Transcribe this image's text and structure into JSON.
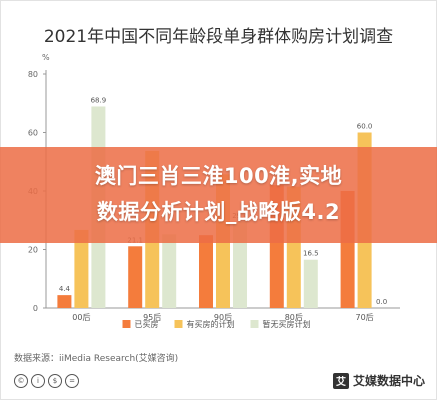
{
  "chart_data": {
    "type": "bar",
    "title": "2021年中国不同年龄段单身群体购房计划调查",
    "ylabel": "%",
    "ylim": [
      0,
      80
    ],
    "yticks": [
      0,
      20,
      40,
      60,
      80
    ],
    "categories": [
      "00后",
      "95后",
      "90后",
      "80后",
      "70后"
    ],
    "series": [
      {
        "name": "已买房",
        "color": "#f47c3c",
        "values": [
          4.4,
          21.1,
          24.9,
          42.0,
          40.0
        ]
      },
      {
        "name": "有买房的计划",
        "color": "#f6c35a",
        "values": [
          26.7,
          53.7,
          45.7,
          41.5,
          60.0
        ]
      },
      {
        "name": "暂无买房计划",
        "color": "#dde7cf",
        "values": [
          68.9,
          25.2,
          29.4,
          16.5,
          0.0
        ]
      }
    ],
    "visible_value_labels": [
      {
        "category": "00后",
        "series": "已买房",
        "label": "4.4"
      },
      {
        "category": "00后",
        "series": "暂无买房计划",
        "label": "68.9"
      },
      {
        "category": "95后",
        "series": "已买房",
        "label": "21.1"
      },
      {
        "category": "90后",
        "series": "暂无买房计划",
        "label": "29.4"
      },
      {
        "category": "80后",
        "series": "暂无买房计划",
        "label": "16.5"
      },
      {
        "category": "70后",
        "series": "有买房的计划",
        "label": "60.0"
      },
      {
        "category": "70后",
        "series": "暂无买房计划",
        "label": "0.0"
      }
    ],
    "grid": false,
    "legend": "bottom"
  },
  "banner": {
    "line1": "澳门三肖三淮100淮,实地",
    "line2": "数据分析计划_战略版4.2"
  },
  "source": "数据来源：iiMedia Research(艾媒咨询)",
  "cc_icons": [
    "©",
    "i",
    "$",
    "="
  ],
  "logo": {
    "mark": "艾",
    "text": "艾媒数据中心"
  }
}
